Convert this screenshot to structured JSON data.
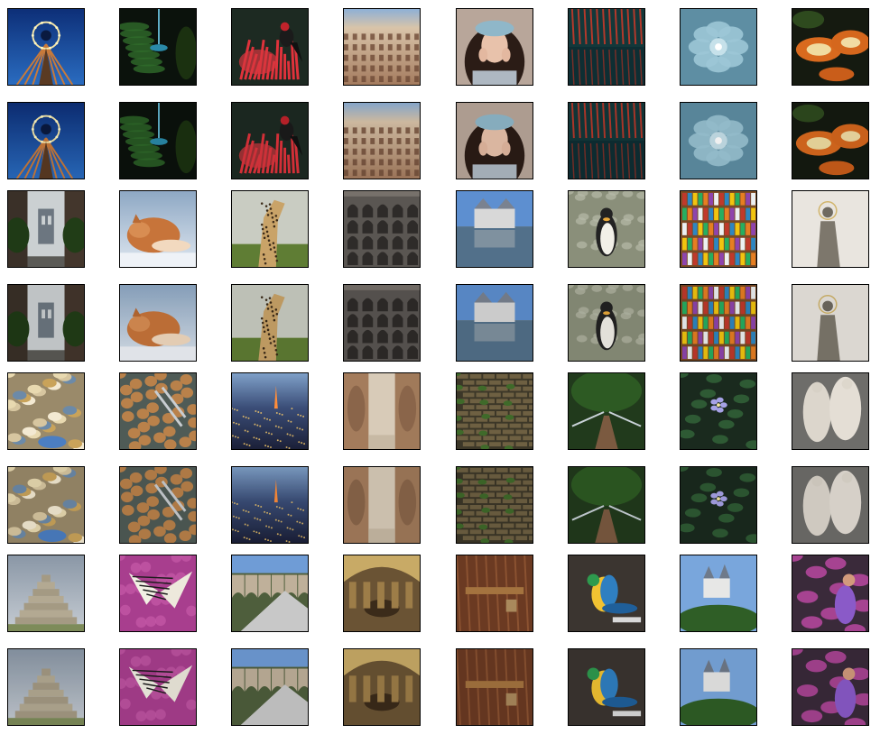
{
  "grid": {
    "rows": 8,
    "cols": 8,
    "row_pairs": [
      [
        "ferris-wheel-tower",
        "dark-fern-fountain",
        "red-bird-on-red-flowers",
        "colosseum-interior",
        "woman-in-blue-beret",
        "red-forest-lake-reflection",
        "blue-succulent",
        "orange-mushroom"
      ],
      [
        "manhattan-bridge-street",
        "sleeping-fox-in-snow",
        "cheetah-in-grass",
        "colosseum-arches",
        "chateau-reflected-in-water",
        "penguin-on-rocks",
        "bookshelf",
        "saint-statue"
      ],
      [
        "market-stall-goods",
        "walnuts-and-nutcracker",
        "city-tower-dusk",
        "egyptian-temple-statues",
        "overgrown-brick-wall",
        "forest-footbridge",
        "blue-flowers-leaves",
        "marble-sculpture-group"
      ],
      [
        "mayan-pyramid",
        "butterfly-on-purple-flowers",
        "stone-aqueduct",
        "library-reading-room",
        "wooden-door-padlock",
        "blue-yellow-macaw",
        "castle-on-hill",
        "pink-graffiti-machinery"
      ]
    ],
    "row_role": [
      "original",
      "reconstruction"
    ]
  }
}
